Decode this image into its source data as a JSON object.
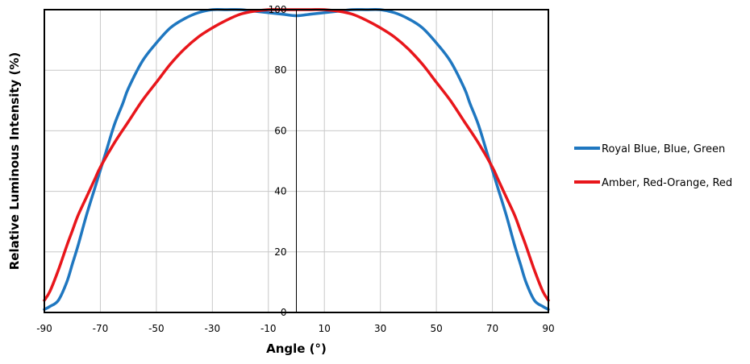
{
  "chart_data": {
    "type": "line",
    "title": "",
    "xlabel": "Angle (°)",
    "ylabel": "Relative Luminous Intensity (%)",
    "xlim": [
      -90,
      90
    ],
    "ylim": [
      0,
      100
    ],
    "x_ticks": [
      -90,
      -70,
      -50,
      -30,
      -10,
      10,
      30,
      50,
      70,
      90
    ],
    "y_ticks": [
      0,
      20,
      40,
      60,
      80,
      100
    ],
    "grid": true,
    "legend_position": "right",
    "series": [
      {
        "name": "Royal Blue, Blue, Green",
        "color": "#1f77c0",
        "x": [
          -90,
          -88,
          -85,
          -82,
          -80,
          -78,
          -75,
          -72,
          -70,
          -68,
          -65,
          -62,
          -60,
          -55,
          -50,
          -45,
          -40,
          -35,
          -30,
          -25,
          -20,
          -15,
          -10,
          -5,
          0,
          5,
          10,
          15,
          20,
          25,
          30,
          35,
          40,
          45,
          50,
          55,
          60,
          62,
          65,
          68,
          70,
          72,
          75,
          78,
          80,
          82,
          85,
          88,
          90
        ],
        "y": [
          1,
          2,
          4,
          10,
          16,
          22,
          32,
          41,
          47,
          53,
          62,
          69,
          74,
          83,
          89,
          94,
          97,
          99,
          100,
          100,
          100,
          99.5,
          99,
          98.5,
          98,
          98.5,
          99,
          99.5,
          100,
          100,
          100,
          99,
          97,
          94,
          89,
          83,
          74,
          69,
          62,
          53,
          47,
          41,
          32,
          22,
          16,
          10,
          4,
          2,
          1
        ]
      },
      {
        "name": "Amber, Red-Orange, Red",
        "color": "#e8161b",
        "x": [
          -90,
          -88,
          -85,
          -82,
          -80,
          -78,
          -75,
          -72,
          -70,
          -65,
          -60,
          -55,
          -50,
          -45,
          -40,
          -35,
          -30,
          -25,
          -20,
          -15,
          -10,
          -5,
          0,
          5,
          10,
          15,
          20,
          25,
          30,
          35,
          40,
          45,
          50,
          55,
          60,
          65,
          70,
          72,
          75,
          78,
          80,
          82,
          85,
          88,
          90
        ],
        "y": [
          4,
          7,
          14,
          22,
          27,
          32,
          38,
          44,
          48,
          56,
          63,
          70,
          76,
          82,
          87,
          91,
          94,
          96.5,
          98.5,
          99.5,
          100,
          100,
          100,
          100,
          100,
          99.5,
          98.5,
          96.5,
          94,
          91,
          87,
          82,
          76,
          70,
          63,
          56,
          48,
          44,
          38,
          32,
          27,
          22,
          14,
          7,
          4
        ]
      }
    ]
  }
}
